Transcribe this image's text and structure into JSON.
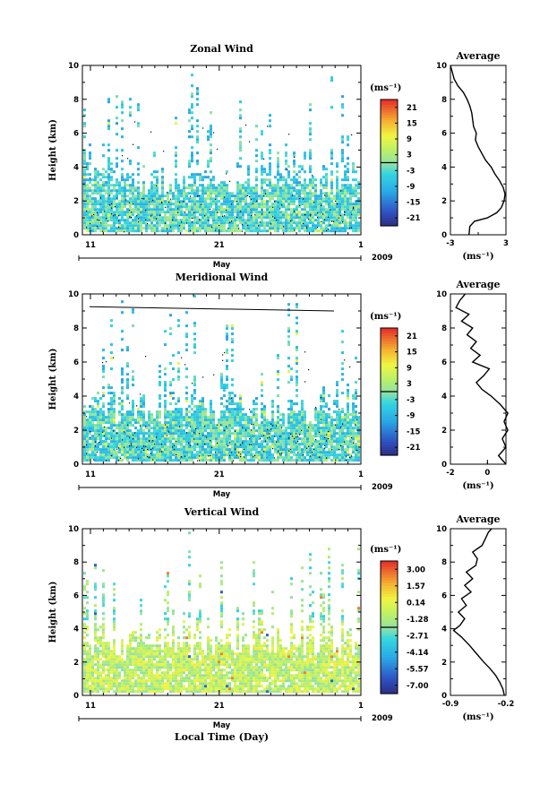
{
  "chart_data": [
    {
      "type": "heatmap",
      "title": "Zonal Wind",
      "ylabel": "Height (km)",
      "ylim": [
        0,
        10
      ],
      "yticks": [
        0,
        2,
        4,
        6,
        8,
        10
      ],
      "x_ticks": [
        "11",
        "21",
        "1"
      ],
      "x_month": "May",
      "x_year": "2009",
      "colorbar": {
        "unit": "(ms⁻¹)",
        "ticks": [
          "21",
          "15",
          "9",
          "3",
          "-3",
          "-9",
          "-15",
          "-21"
        ],
        "range": [
          -24,
          24
        ]
      },
      "dominant_sign": "negative",
      "average_profile": {
        "title": "Average",
        "xlabel": "(ms⁻¹)",
        "xlim": [
          -3,
          3
        ],
        "xticks": [
          "-3",
          "3"
        ],
        "height": [
          0.0,
          0.5,
          0.8,
          1.0,
          1.3,
          1.6,
          2.0,
          2.4,
          2.8,
          3.2,
          3.6,
          4.0,
          4.4,
          4.8,
          5.2,
          5.6,
          6.0,
          6.4,
          6.8,
          7.2,
          7.6,
          8.0,
          8.4,
          8.8,
          9.2,
          9.6,
          10.0
        ],
        "value": [
          -1.0,
          -0.9,
          -0.4,
          1.0,
          2.0,
          2.5,
          2.8,
          2.9,
          2.7,
          2.3,
          1.8,
          1.4,
          0.8,
          0.4,
          0.0,
          -0.3,
          -0.2,
          -0.5,
          -0.6,
          -0.7,
          -0.9,
          -1.2,
          -1.6,
          -2.2,
          -2.6,
          -2.8,
          -3.0
        ]
      }
    },
    {
      "type": "heatmap",
      "title": "Meridional Wind",
      "ylabel": "Height (km)",
      "ylim": [
        0,
        10
      ],
      "yticks": [
        0,
        2,
        4,
        6,
        8,
        10
      ],
      "x_ticks": [
        "11",
        "21",
        "1"
      ],
      "x_month": "May",
      "x_year": "2009",
      "colorbar": {
        "unit": "(ms⁻¹)",
        "ticks": [
          "21",
          "15",
          "9",
          "3",
          "-3",
          "-9",
          "-15",
          "-21"
        ],
        "range": [
          -24,
          24
        ]
      },
      "dominant_sign": "negative",
      "average_profile": {
        "title": "Average",
        "xlabel": "(ms⁻¹)",
        "xlim": [
          -2,
          1
        ],
        "xticks": [
          "-2",
          "0"
        ],
        "height": [
          0.0,
          0.5,
          1.0,
          1.5,
          2.0,
          2.5,
          3.0,
          3.5,
          4.0,
          4.4,
          4.8,
          5.2,
          5.6,
          6.0,
          6.4,
          6.8,
          7.2,
          7.6,
          8.0,
          8.4,
          8.8,
          9.2,
          9.6,
          10.0
        ],
        "value": [
          1.0,
          0.6,
          1.0,
          0.8,
          1.1,
          0.9,
          1.1,
          0.7,
          0.2,
          -0.3,
          -0.6,
          -0.2,
          0.1,
          -0.8,
          -0.4,
          -0.9,
          -0.6,
          -1.1,
          -0.8,
          -1.4,
          -1.0,
          -1.7,
          -1.5,
          -1.2
        ]
      }
    },
    {
      "type": "heatmap",
      "title": "Vertical Wind",
      "ylabel": "Height (km)",
      "xlabel": "Local Time (Day)",
      "ylim": [
        0,
        10
      ],
      "yticks": [
        0,
        2,
        4,
        6,
        8,
        10
      ],
      "x_ticks": [
        "11",
        "21",
        "1"
      ],
      "x_month": "May",
      "x_year": "2009",
      "colorbar": {
        "unit": "(ms⁻¹)",
        "ticks": [
          "3.00",
          "1.57",
          "0.14",
          "-1.28",
          "-2.71",
          "-4.14",
          "-5.57",
          "-7.00"
        ],
        "range": [
          -7.7,
          3.7
        ]
      },
      "dominant_sign": "vertical",
      "average_profile": {
        "title": "Average",
        "xlabel": "(ms⁻¹)",
        "xlim": [
          -0.9,
          -0.2
        ],
        "xticks": [
          "-0.9",
          "-0.2"
        ],
        "height": [
          0.0,
          0.4,
          0.8,
          1.2,
          1.6,
          2.0,
          2.5,
          3.0,
          3.5,
          3.9,
          4.2,
          4.6,
          5.0,
          5.4,
          5.8,
          6.2,
          6.6,
          7.0,
          7.4,
          7.8,
          8.2,
          8.6,
          9.0,
          9.4,
          9.8,
          10.0
        ],
        "value": [
          -0.22,
          -0.24,
          -0.28,
          -0.33,
          -0.4,
          -0.48,
          -0.57,
          -0.66,
          -0.76,
          -0.86,
          -0.78,
          -0.72,
          -0.8,
          -0.7,
          -0.76,
          -0.64,
          -0.72,
          -0.62,
          -0.7,
          -0.58,
          -0.56,
          -0.62,
          -0.5,
          -0.46,
          -0.42,
          -0.38
        ]
      }
    }
  ]
}
